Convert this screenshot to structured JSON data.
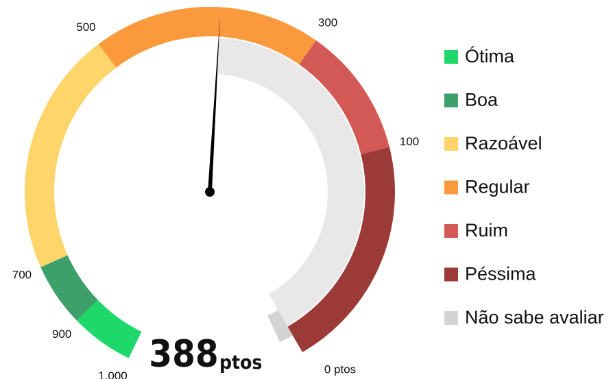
{
  "chart_data": {
    "type": "gauge",
    "value": 388,
    "unit": "ptos",
    "ticks": [
      {
        "value": 0,
        "label": "0 ptos"
      },
      100,
      300,
      500,
      700,
      900,
      {
        "value": 1000,
        "label": "1.000"
      }
    ],
    "segments": [
      {
        "name": "Ótima",
        "color": "#1fd86c",
        "from": 900,
        "to": 1000
      },
      {
        "name": "Boa",
        "color": "#3d9f69",
        "from": 700,
        "to": 900
      },
      {
        "name": "Razoável",
        "color": "#fdd56b",
        "from": 500,
        "to": 700
      },
      {
        "name": "Regular",
        "color": "#fb9a3d",
        "from": 300,
        "to": 500
      },
      {
        "name": "Ruim",
        "color": "#d25956",
        "from": 100,
        "to": 300
      },
      {
        "name": "Péssima",
        "color": "#9b3a37",
        "from": 0,
        "to": 100
      },
      {
        "name": "Não sabe avaliar",
        "color": "#d4d4d4"
      }
    ]
  }
}
